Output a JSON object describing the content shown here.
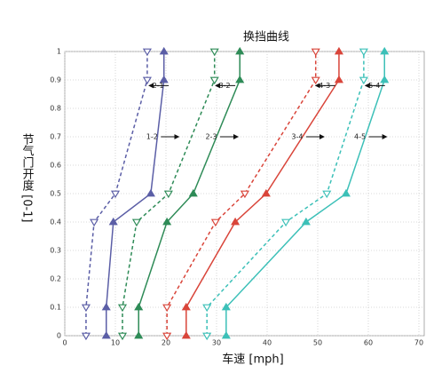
{
  "chart_data": {
    "type": "line",
    "title": "换挡曲线",
    "x_label": "车速 [mph]",
    "y_label": "节气门开度 [0-1]",
    "xlim": [
      0,
      70
    ],
    "xticks": [
      0,
      10,
      20,
      30,
      40,
      50,
      60,
      70
    ],
    "ylim": [
      0,
      1
    ],
    "yticks": [
      0,
      0.1,
      0.2,
      0.3,
      0.4,
      0.5,
      0.6,
      0.7,
      0.8,
      0.9,
      1
    ],
    "grid": true,
    "series": [
      {
        "name": "1-2",
        "color": "#5b5ea6",
        "dashed": false,
        "marker": "up",
        "x": [
          8.2,
          8.2,
          9.6,
          17,
          19.6,
          19.6
        ],
        "values": [
          0,
          0.1,
          0.4,
          0.5,
          0.9,
          1
        ]
      },
      {
        "name": "2-1",
        "color": "#5b5ea6",
        "dashed": true,
        "marker": "down",
        "x": [
          4.2,
          4.2,
          5.8,
          10,
          16.3,
          16.3
        ],
        "values": [
          0,
          0.1,
          0.4,
          0.5,
          0.9,
          1
        ]
      },
      {
        "name": "2-3",
        "color": "#2e8b57",
        "dashed": false,
        "marker": "up",
        "x": [
          14.6,
          14.6,
          20.2,
          25.4,
          34.6,
          34.6
        ],
        "values": [
          0,
          0.1,
          0.4,
          0.5,
          0.9,
          1
        ]
      },
      {
        "name": "3-2",
        "color": "#2e8b57",
        "dashed": true,
        "marker": "down",
        "x": [
          11.4,
          11.4,
          14.2,
          20.5,
          29.6,
          29.6
        ],
        "values": [
          0,
          0.1,
          0.4,
          0.5,
          0.9,
          1
        ]
      },
      {
        "name": "3-4",
        "color": "#d9453a",
        "dashed": false,
        "marker": "up",
        "x": [
          24,
          24,
          33.7,
          39.8,
          54.2,
          54.2
        ],
        "values": [
          0,
          0.1,
          0.4,
          0.5,
          0.9,
          1
        ]
      },
      {
        "name": "4-3",
        "color": "#d9453a",
        "dashed": true,
        "marker": "down",
        "x": [
          20.2,
          20.2,
          29.8,
          35.6,
          49.6,
          49.6
        ],
        "values": [
          0,
          0.1,
          0.4,
          0.5,
          0.9,
          1
        ]
      },
      {
        "name": "4-5",
        "color": "#3cc0b8",
        "dashed": false,
        "marker": "up",
        "x": [
          31.9,
          31.9,
          47.7,
          55.6,
          63.2,
          63.2
        ],
        "values": [
          0,
          0.1,
          0.4,
          0.5,
          0.9,
          1
        ]
      },
      {
        "name": "5-4",
        "color": "#3cc0b8",
        "dashed": true,
        "marker": "down",
        "x": [
          28.1,
          28.1,
          43.7,
          51.8,
          59.1,
          59.1
        ],
        "values": [
          0,
          0.1,
          0.4,
          0.5,
          0.9,
          1
        ]
      }
    ]
  }
}
